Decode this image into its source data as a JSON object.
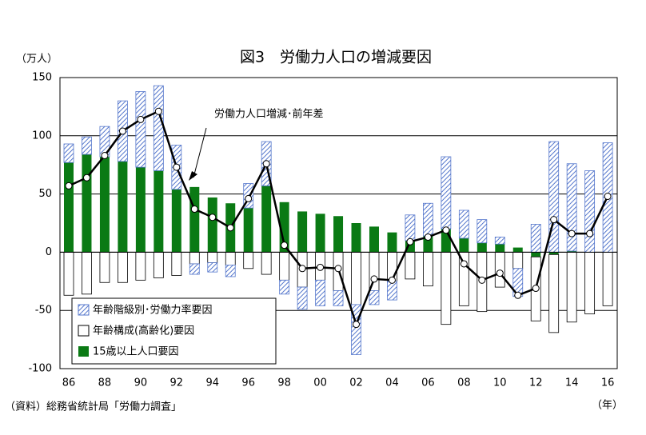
{
  "chart_data": {
    "type": "bar",
    "title": "図3　労働力人口の増減要因",
    "y_unit": "（万人）",
    "x_unit": "（年）",
    "source": "（資料）総務省統計局「労働力調査」",
    "annotation": "労働力人口増減･前年差",
    "categories": [
      "86",
      null,
      "88",
      null,
      "90",
      null,
      "92",
      null,
      "94",
      null,
      "96",
      null,
      "98",
      null,
      "00",
      null,
      "02",
      null,
      "04",
      null,
      "06",
      null,
      "08",
      null,
      "10",
      null,
      "12",
      null,
      "14",
      null,
      "16"
    ],
    "series": [
      {
        "name": "年齢階級別･労働力率要因",
        "color": "#5577cc",
        "values": [
          16,
          15,
          26,
          52,
          65,
          73,
          38,
          -9,
          -8,
          -10,
          21,
          38,
          -12,
          -19,
          -22,
          -13,
          -43,
          -12,
          -16,
          22,
          28,
          62,
          24,
          20,
          6,
          -24,
          24,
          95,
          75,
          70,
          94
        ]
      },
      {
        "name": "年齢構成(高齢化)要因",
        "color": "#ffffff",
        "values": [
          -37,
          -36,
          -26,
          -26,
          -24,
          -22,
          -20,
          -10,
          -9,
          -11,
          -14,
          -19,
          -24,
          -30,
          -24,
          -33,
          -45,
          -33,
          -25,
          -23,
          -29,
          -62,
          -46,
          -51,
          -30,
          -14,
          -55,
          -67,
          -60,
          -53,
          -46
        ]
      },
      {
        "name": "15歳以上人口要因",
        "color": "#0a7a14",
        "values": [
          77,
          84,
          82,
          78,
          73,
          70,
          54,
          56,
          47,
          42,
          38,
          57,
          43,
          35,
          33,
          31,
          25,
          22,
          17,
          10,
          14,
          20,
          12,
          8,
          7,
          4,
          -4,
          -2,
          1,
          0,
          0
        ]
      }
    ],
    "line": {
      "name": "労働力人口増減･前年差",
      "color": "#000000",
      "values": [
        57,
        64,
        83,
        104,
        114,
        121,
        73,
        37,
        30,
        21,
        46,
        76,
        6,
        -14,
        -13,
        -14,
        -62,
        -23,
        -24,
        9,
        13,
        19,
        -10,
        -24,
        -18,
        -37,
        -31,
        28,
        16,
        16,
        48
      ]
    },
    "ylim": [
      -100,
      150
    ],
    "yticks": [
      -100,
      -50,
      0,
      50,
      100,
      150
    ],
    "grid": true
  }
}
